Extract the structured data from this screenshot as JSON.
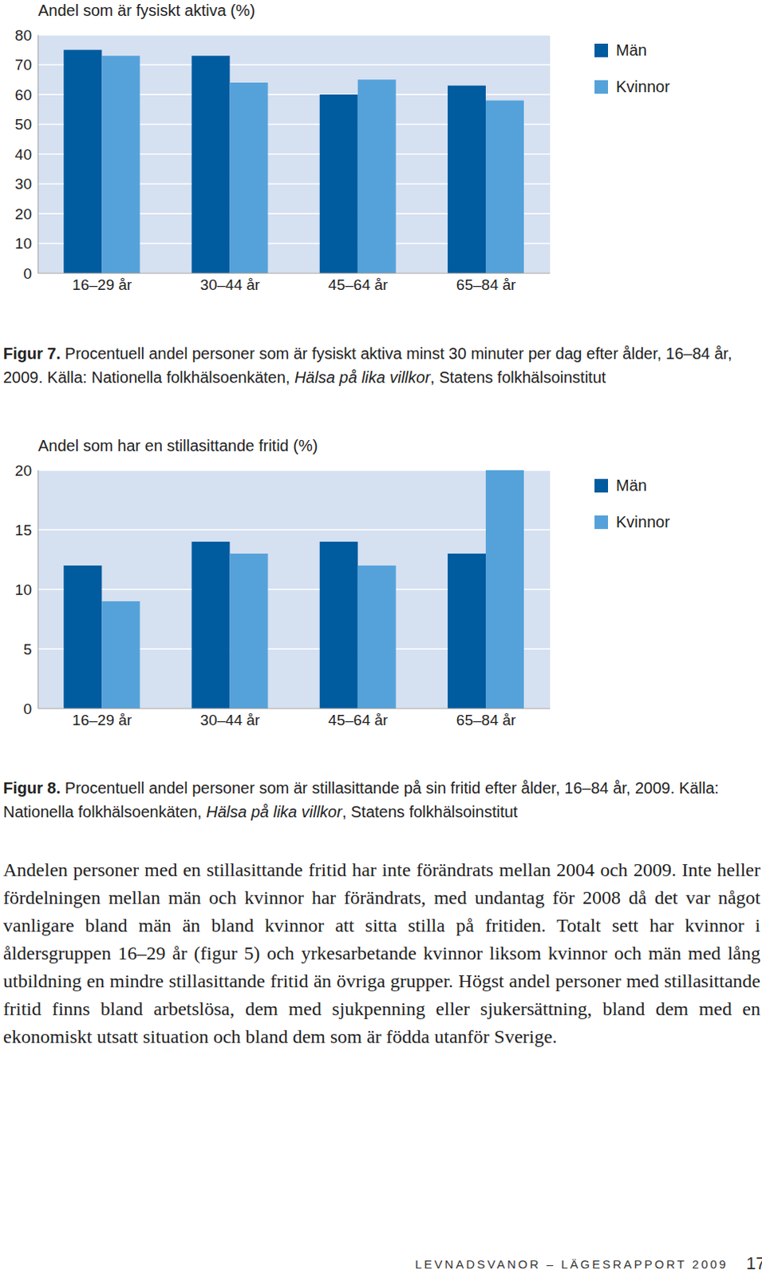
{
  "chart_data": [
    {
      "type": "bar",
      "title": "Andel som är fysiskt aktiva (%)",
      "categories": [
        "16–29 år",
        "30–44 år",
        "45–64 år",
        "65–84 år"
      ],
      "series": [
        {
          "name": "Män",
          "color": "#005b9f",
          "values": [
            75,
            73,
            60,
            63
          ]
        },
        {
          "name": "Kvinnor",
          "color": "#55a2da",
          "values": [
            73,
            64,
            65,
            58
          ]
        }
      ],
      "ylim": [
        0,
        80
      ],
      "yticks": [
        0,
        10,
        20,
        30,
        40,
        50,
        60,
        70,
        80
      ],
      "grid": true,
      "legend": "right",
      "caption": {
        "label": "Figur 7.",
        "text": "Procentuell andel personer som är fysiskt aktiva minst 30 minuter per dag efter ålder, 16–84 år, 2009. Källa: Nationella folkhälsoenkäten, ",
        "italic": "Hälsa på lika villkor",
        "after": ", Statens folkhälsoinstitut"
      }
    },
    {
      "type": "bar",
      "title": "Andel som har en stillasittande fritid  (%)",
      "categories": [
        "16–29 år",
        "30–44 år",
        "45–64 år",
        "65–84 år"
      ],
      "series": [
        {
          "name": "Män",
          "color": "#005b9f",
          "values": [
            12,
            14,
            14,
            13
          ]
        },
        {
          "name": "Kvinnor",
          "color": "#55a2da",
          "values": [
            9,
            13,
            12,
            20
          ]
        }
      ],
      "ylim": [
        0,
        20
      ],
      "yticks": [
        0,
        5,
        10,
        15,
        20
      ],
      "grid": true,
      "legend": "right",
      "caption": {
        "label": "Figur 8.",
        "text": "Procentuell andel personer som är stillasittande på sin fritid efter ålder, 16–84 år, 2009. Källa: Nationella folkhälsoenkäten, ",
        "italic": "Hälsa på lika villkor",
        "after": ", Statens folkhälsoinstitut"
      }
    }
  ],
  "paragraph": "Andelen personer med en stillasittande fritid har inte förändrats mellan 2004 och 2009. Inte heller fördelningen mellan män och kvinnor har förändrats, med undantag för 2008 då det var något vanligare bland män än bland kvinnor att sitta stilla på fritiden. Totalt sett har kvinnor i åldersgruppen 16–29 år (figur 5) och yrkesarbetande kvinnor liksom kvinnor och män med lång utbildning en mindre stillasittande fritid än övriga grupper. Högst andel personer med stillasittande fritid finns bland arbetslösa, dem med sjukpenning eller sjukersättning, bland dem med en ekonomiskt utsatt situation och bland dem som är födda utanför Sverige.",
  "footer": {
    "text": "LEVNADSVANOR – LÄGESRAPPORT 2009",
    "page": "17"
  }
}
